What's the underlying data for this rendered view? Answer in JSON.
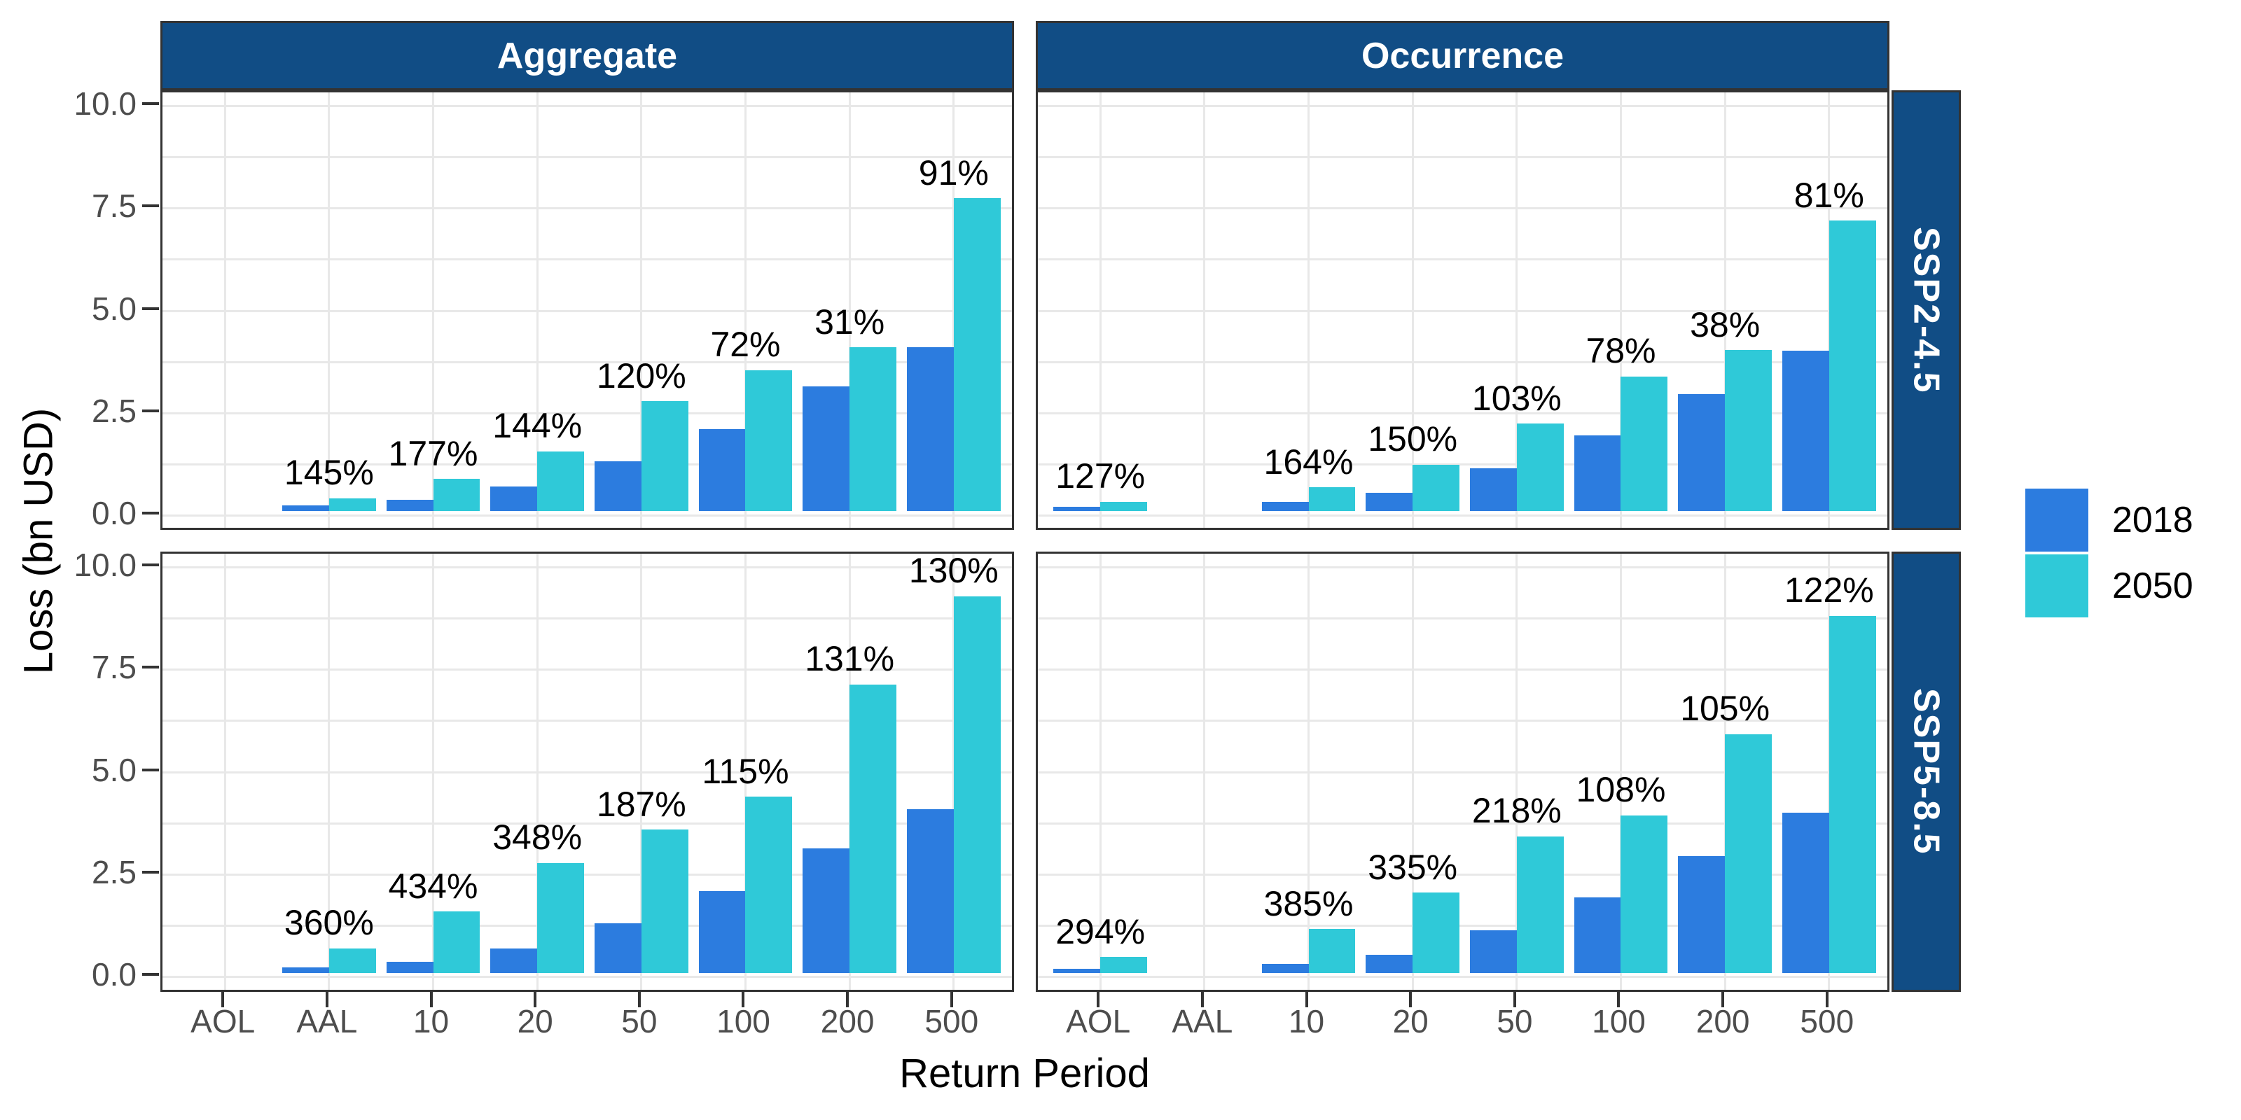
{
  "chart_data": {
    "type": "bar",
    "facet_cols": [
      "Aggregate",
      "Occurrence"
    ],
    "facet_rows": [
      "SSP2-4.5",
      "SSP5-8.5"
    ],
    "categories": [
      "AOL",
      "AAL",
      "10",
      "20",
      "50",
      "100",
      "200",
      "500"
    ],
    "xlabel": "Return Period",
    "ylabel": "Loss (bn USD)",
    "ylim": [
      0,
      10.4
    ],
    "yticks": [
      {
        "value": 10,
        "label": "10.0"
      },
      {
        "value": 7.5,
        "label": "7.5"
      },
      {
        "value": 5,
        "label": "5.0"
      },
      {
        "value": 2.5,
        "label": "2.5"
      },
      {
        "value": 0,
        "label": "0.0"
      }
    ],
    "grid": {
      "h_step": 1.25,
      "v_lines": "category-centers"
    },
    "legend": {
      "position": "right",
      "items": [
        {
          "label": "2018",
          "color": "#2C7CDF"
        },
        {
          "label": "2050",
          "color": "#2FC9D8"
        }
      ]
    },
    "panels": [
      {
        "col": "Aggregate",
        "row": "SSP2-4.5",
        "series": [
          {
            "name": "2018",
            "values": [
              null,
              0.13,
              0.28,
              0.6,
              1.22,
              2.0,
              3.05,
              4.0
            ]
          },
          {
            "name": "2050",
            "values": [
              null,
              0.31,
              0.78,
              1.46,
              2.68,
              3.44,
              4.0,
              7.64
            ]
          }
        ],
        "pct_labels": [
          null,
          "145%",
          "177%",
          "144%",
          "120%",
          "72%",
          "31%",
          "91%"
        ]
      },
      {
        "col": "Occurrence",
        "row": "SSP2-4.5",
        "series": [
          {
            "name": "2018",
            "values": [
              0.1,
              null,
              0.22,
              0.45,
              1.05,
              1.85,
              2.85,
              3.92
            ]
          },
          {
            "name": "2050",
            "values": [
              0.23,
              null,
              0.58,
              1.13,
              2.13,
              3.29,
              3.93,
              7.09
            ]
          }
        ],
        "pct_labels": [
          "127%",
          null,
          "164%",
          "150%",
          "103%",
          "78%",
          "38%",
          "81%"
        ]
      },
      {
        "col": "Aggregate",
        "row": "SSP5-8.5",
        "series": [
          {
            "name": "2018",
            "values": [
              null,
              0.13,
              0.28,
              0.6,
              1.22,
              2.0,
              3.05,
              4.0
            ]
          },
          {
            "name": "2050",
            "values": [
              null,
              0.6,
              1.5,
              2.69,
              3.5,
              4.3,
              7.05,
              9.2
            ]
          }
        ],
        "pct_labels": [
          null,
          "360%",
          "434%",
          "348%",
          "187%",
          "115%",
          "131%",
          "130%"
        ]
      },
      {
        "col": "Occurrence",
        "row": "SSP5-8.5",
        "series": [
          {
            "name": "2018",
            "values": [
              0.1,
              null,
              0.22,
              0.45,
              1.05,
              1.85,
              2.85,
              3.92
            ]
          },
          {
            "name": "2050",
            "values": [
              0.39,
              null,
              1.07,
              1.96,
              3.34,
              3.85,
              5.83,
              8.72
            ]
          }
        ],
        "pct_labels": [
          "294%",
          null,
          "385%",
          "335%",
          "218%",
          "108%",
          "105%",
          "122%"
        ]
      }
    ]
  },
  "colors": {
    "bar_2018": "#2C7CDF",
    "bar_2050": "#2FC9D8",
    "strip_bg": "#114D85",
    "strip_text": "#FFFFFF",
    "grid_line": "#E8E8E8",
    "panel_border": "#333333",
    "axis_text": "#4D4D4D",
    "label_text": "#000000",
    "background": "#FFFFFF"
  }
}
